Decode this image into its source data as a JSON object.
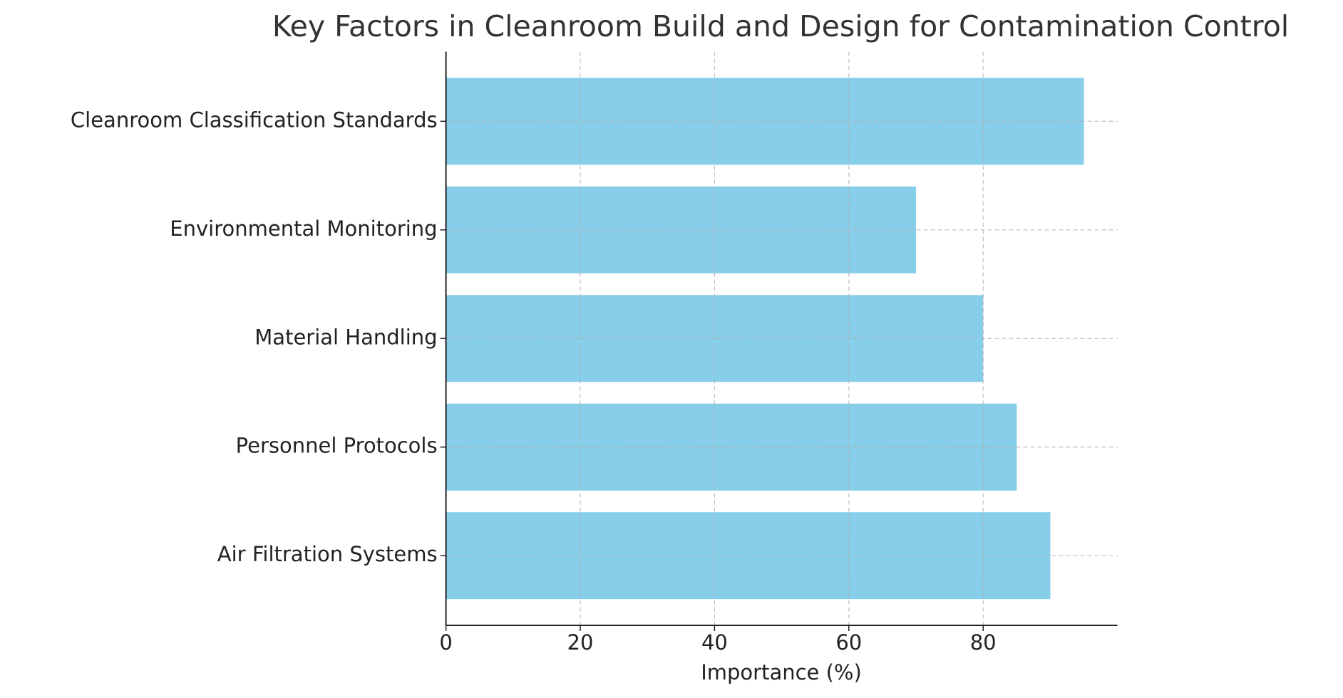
{
  "chart_data": {
    "type": "bar",
    "orientation": "horizontal",
    "title": "Key Factors in Cleanroom Build and Design for Contamination Control",
    "x_label": "Importance (%)",
    "categories": [
      "Air Filtration Systems",
      "Personnel Protocols",
      "Material Handling",
      "Environmental Monitoring",
      "Cleanroom Classification Standards"
    ],
    "values": [
      90,
      85,
      80,
      70,
      95
    ],
    "color": "#87ceeb",
    "xlim": [
      0,
      100
    ],
    "xticks": [
      0,
      20,
      40,
      60,
      80
    ],
    "grid": true
  }
}
